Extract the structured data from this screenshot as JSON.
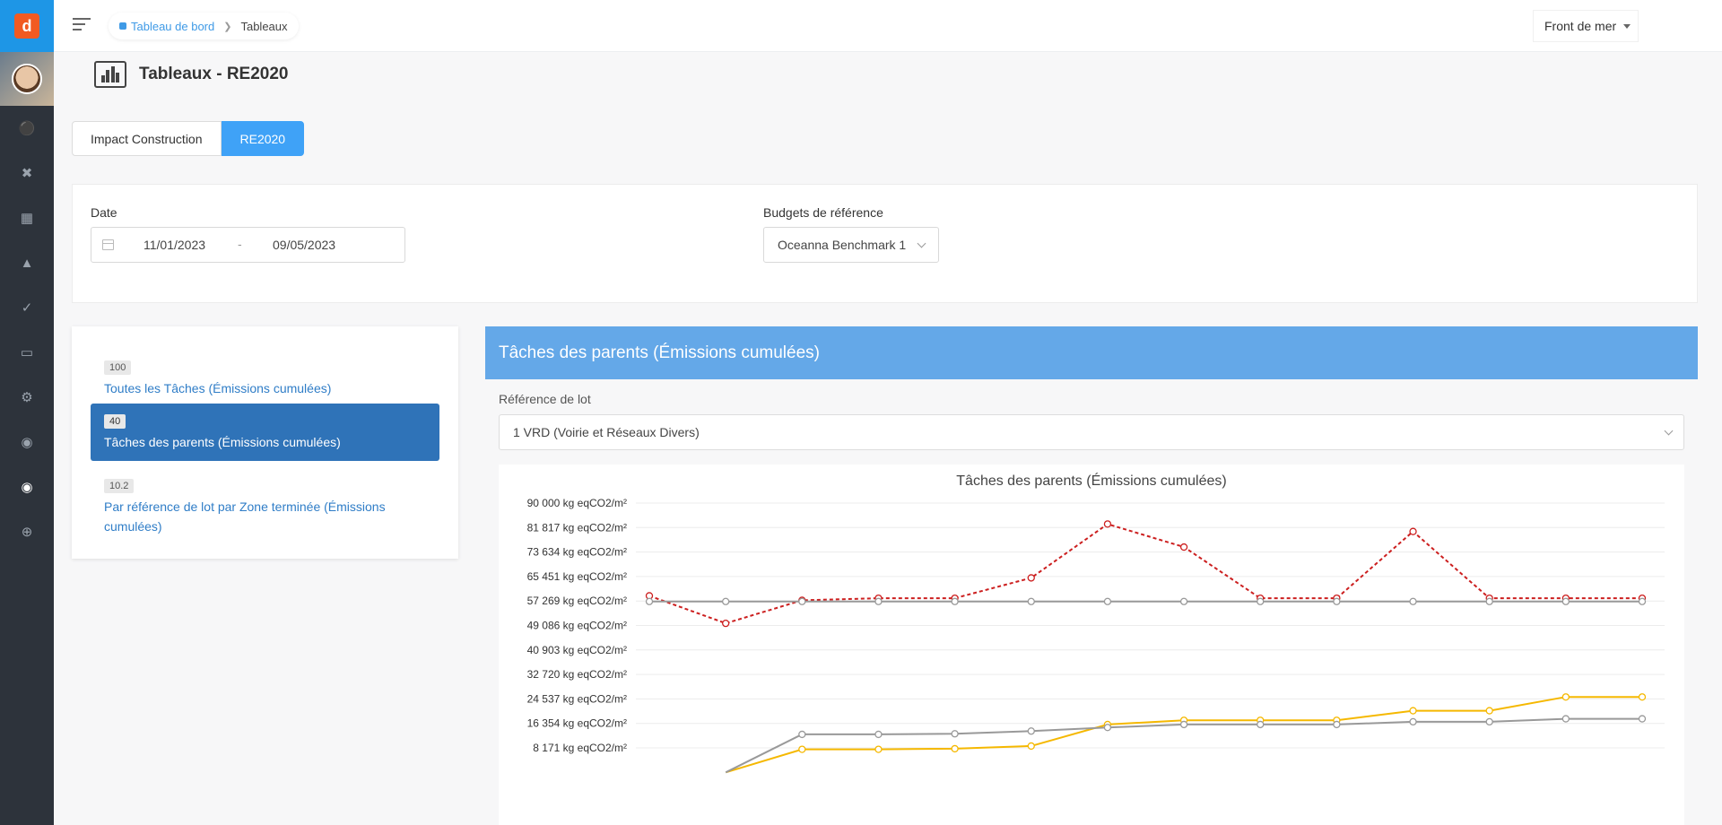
{
  "app": {
    "logo_letter": "d"
  },
  "breadcrumb": {
    "home": "Tableau de bord",
    "current": "Tableaux"
  },
  "site_selector": {
    "value": "Front de mer"
  },
  "page": {
    "title": "Tableaux - RE2020"
  },
  "tabs": [
    {
      "label": "Impact Construction",
      "active": false
    },
    {
      "label": "RE2020",
      "active": true
    }
  ],
  "filters": {
    "date_label": "Date",
    "date_start": "11/01/2023",
    "date_separator": "-",
    "date_end": "09/05/2023",
    "budget_label": "Budgets de référence",
    "budget_value": "Oceanna Benchmark 1"
  },
  "reports": [
    {
      "badge": "100",
      "label": "Toutes les Tâches (Émissions cumulées)",
      "active": false
    },
    {
      "badge": "40",
      "label": "Tâches des parents (Émissions cumulées)",
      "active": true
    },
    {
      "badge": "10.2",
      "label": "Par référence de lot par Zone terminée (Émissions cumulées)",
      "active": false
    }
  ],
  "panel": {
    "header": "Tâches des parents (Émissions cumulées)",
    "lot_label": "Référence de lot",
    "lot_value": "1 VRD (Voirie et Réseaux Divers)"
  },
  "sidebar_icons": [
    "briefcase-icon",
    "tools-icon",
    "building-icon",
    "tree-icon",
    "check-icon",
    "folder-icon",
    "gear-icon",
    "palette-icon",
    "chart-icon",
    "plus-circle-icon"
  ],
  "chart_data": {
    "type": "line",
    "title": "Tâches des parents (Émissions cumulées)",
    "y_ticks": [
      "90 000 kg eqCO2/m²",
      "81 817 kg eqCO2/m²",
      "73 634 kg eqCO2/m²",
      "65 451 kg eqCO2/m²",
      "57 269 kg eqCO2/m²",
      "49 086 kg eqCO2/m²",
      "40 903 kg eqCO2/m²",
      "32 720 kg eqCO2/m²",
      "24 537 kg eqCO2/m²",
      "16 354 kg eqCO2/m²",
      "8 171 kg eqCO2/m²"
    ],
    "ylim": [
      0,
      90000
    ],
    "x_count": 14,
    "grid": true,
    "series": [
      {
        "color": "#cc1f1f",
        "dashed": true,
        "values": [
          59000,
          49800,
          57500,
          58200,
          58200,
          65000,
          83000,
          75300,
          58200,
          58200,
          80500,
          58200,
          58200,
          58200
        ]
      },
      {
        "color": "#999999",
        "dashed": false,
        "values": [
          57100,
          57100,
          57100,
          57100,
          57100,
          57100,
          57100,
          57100,
          57100,
          57100,
          57100,
          57100,
          57100,
          57100
        ]
      },
      {
        "color": "#f5b800",
        "dashed": false,
        "values": null,
        "partial_values": [
          null,
          0,
          7700,
          7700,
          7900,
          8800,
          16000,
          17400,
          17400,
          17400,
          20600,
          20600,
          25200,
          25200
        ]
      },
      {
        "color": "#999999",
        "dashed": false,
        "values": null,
        "partial_values": [
          null,
          0,
          12700,
          12700,
          12900,
          13800,
          15000,
          16000,
          16000,
          16000,
          16900,
          16900,
          17900,
          17900
        ]
      }
    ]
  }
}
